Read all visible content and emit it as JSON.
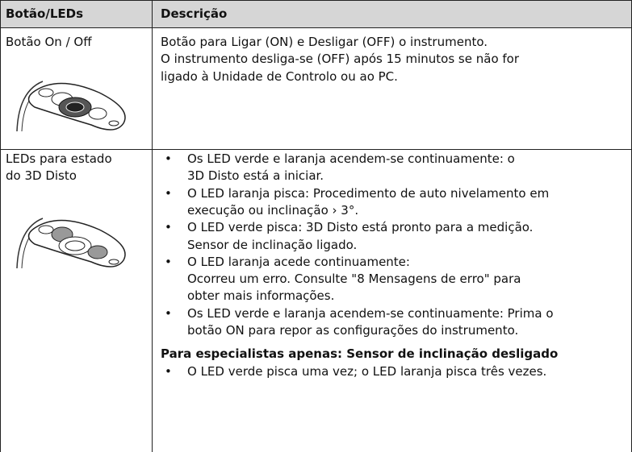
{
  "table": {
    "header": [
      "Botão/LEDs",
      "Descrição"
    ],
    "rows": [
      {
        "label": [
          "Botão On / Off"
        ],
        "lines": [
          "Botão para Ligar (ON) e Desligar (OFF) o instrumento.",
          "O instrumento desliga-se (OFF) após 15 minutos se não for",
          "ligado à Unidade de Controlo ou ao PC."
        ]
      },
      {
        "label": [
          "LEDs para estado",
          "do 3D Disto"
        ],
        "bullets": [
          [
            "Os LED verde e laranja acendem-se continuamente: o",
            "3D Disto está a iniciar."
          ],
          [
            "O LED laranja pisca: Procedimento de auto nivelamento em",
            "execução ou inclinação › 3°."
          ],
          [
            "O LED verde pisca: 3D Disto está pronto para a medição.",
            "Sensor de inclinação ligado."
          ],
          [
            "O LED laranja acede continuamente:",
            "Ocorreu um erro. Consulte \"8 Mensagens de erro\" para",
            "obter mais informações."
          ],
          [
            "Os LED verde e laranja acendem-se continuamente: Prima o",
            "botão ON para repor as configurações do instrumento."
          ]
        ],
        "subheading": "Para especialistas apenas: Sensor de inclinação desligado",
        "bullets2": [
          [
            "O LED verde pisca uma vez; o LED laranja pisca três vezes."
          ]
        ]
      }
    ]
  }
}
